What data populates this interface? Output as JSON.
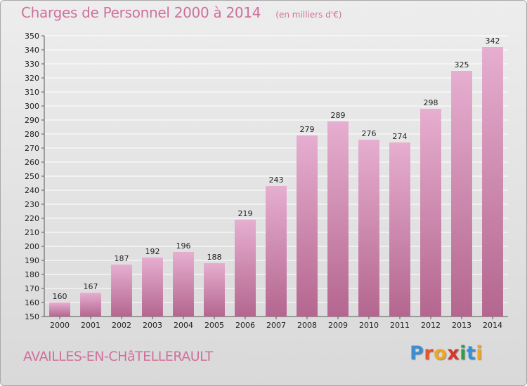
{
  "header": {
    "title": "Charges de Personnel 2000 à 2014",
    "subtitle": "(en milliers d'€)"
  },
  "footer": {
    "commune": "AVAILLES-EN-CHâTELLERAULT",
    "brand": "Proxiti"
  },
  "colors": {
    "bar_light": "#e6aed0",
    "bar_dark": "#b4668f",
    "title": "#d0709c",
    "grid": "#ffffff"
  },
  "chart_data": {
    "type": "bar",
    "title": "Charges de Personnel 2000 à 2014",
    "subtitle": "(en milliers d'€)",
    "categories": [
      "2000",
      "2001",
      "2002",
      "2003",
      "2004",
      "2005",
      "2006",
      "2007",
      "2008",
      "2009",
      "2010",
      "2011",
      "2012",
      "2013",
      "2014"
    ],
    "values": [
      160,
      167,
      187,
      192,
      196,
      188,
      219,
      243,
      279,
      289,
      276,
      274,
      298,
      325,
      342
    ],
    "ylim": [
      150,
      350
    ],
    "ytick_step": 10,
    "grid": true,
    "data_labels": true,
    "legend": "none"
  }
}
